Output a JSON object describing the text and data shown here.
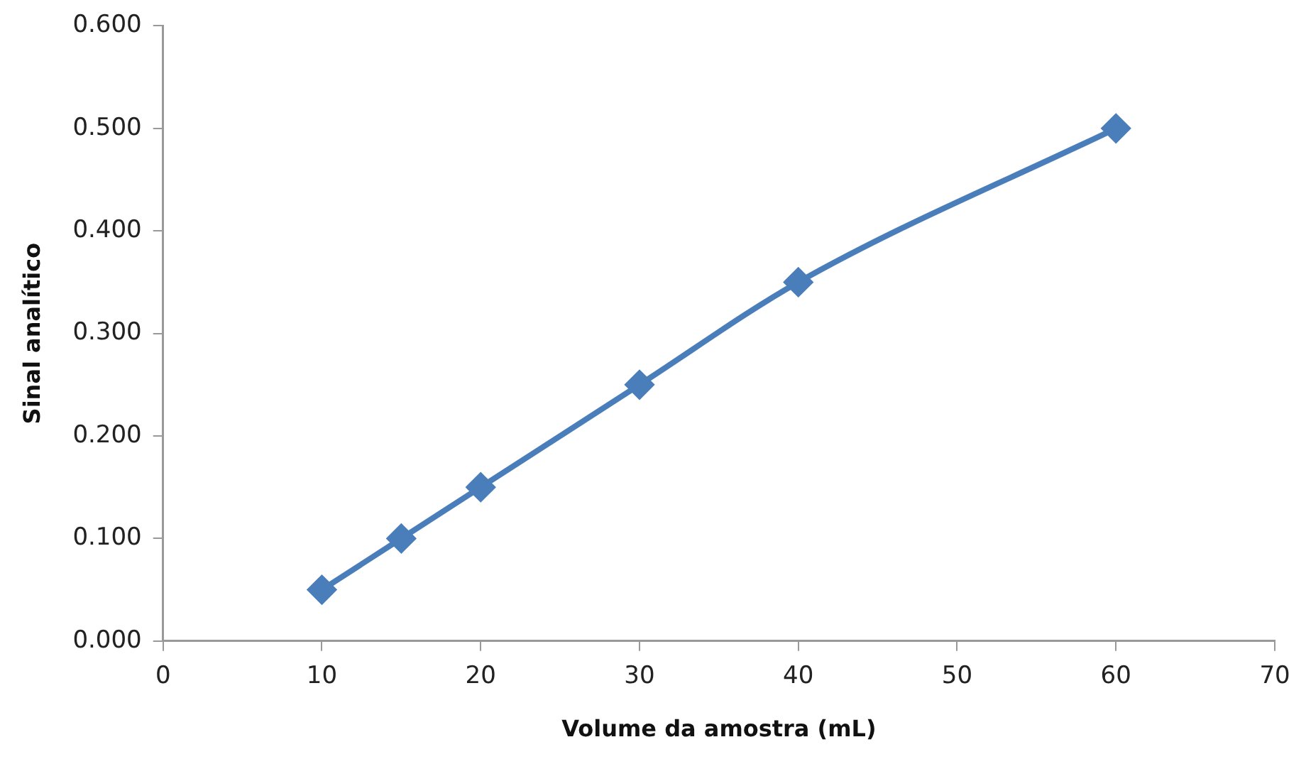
{
  "chart_data": {
    "type": "line",
    "xlabel": "Volume da amostra (mL)",
    "ylabel": "Sinal analítico",
    "x": [
      10,
      15,
      20,
      30,
      40,
      60
    ],
    "series": [
      {
        "color": "#4a7ebb",
        "values": [
          0.05,
          0.1,
          0.15,
          0.25,
          0.35,
          0.5
        ]
      }
    ],
    "xlim": [
      0,
      70
    ],
    "xticks": [
      0,
      10,
      20,
      30,
      40,
      50,
      60,
      70
    ],
    "ylim": [
      0,
      0.6
    ],
    "yticks": [
      {
        "value": 0,
        "label": "0.000"
      },
      {
        "value": 0.1,
        "label": "0.100"
      },
      {
        "value": 0.2,
        "label": "0.200"
      },
      {
        "value": 0.3,
        "label": "0.300"
      },
      {
        "value": 0.4,
        "label": "0.400"
      },
      {
        "value": 0.5,
        "label": "0.500"
      },
      {
        "value": 0.6,
        "label": "0.600"
      }
    ],
    "grid": false,
    "legend": false,
    "marker": "diamond",
    "line_style": "solid"
  }
}
